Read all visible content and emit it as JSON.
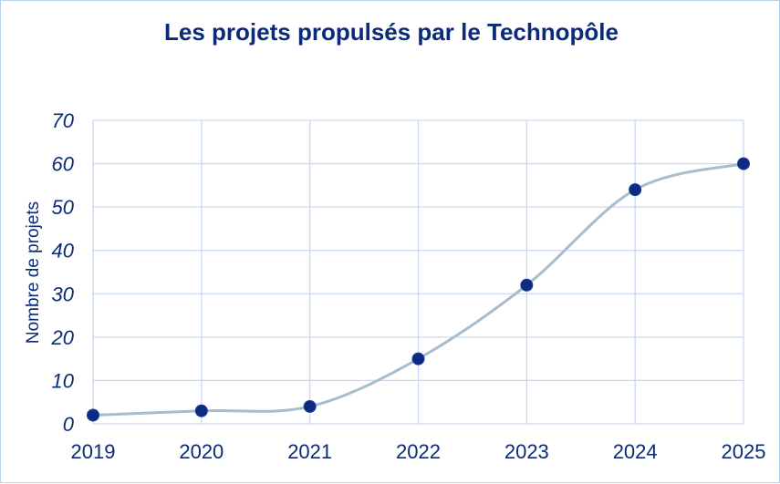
{
  "chart_data": {
    "type": "line",
    "title": "Les projets propulsés par le Technopôle",
    "xlabel": "",
    "ylabel": "Nombre de projets",
    "categories": [
      "2019",
      "2020",
      "2021",
      "2022",
      "2023",
      "2024",
      "2025"
    ],
    "series": [
      {
        "values": [
          2,
          3,
          4,
          15,
          32,
          54,
          60
        ]
      }
    ],
    "ylim": [
      0,
      70
    ],
    "yticks": [
      "0",
      "10",
      "20",
      "30",
      "40",
      "50",
      "60",
      "70"
    ],
    "grid": true,
    "smooth": true,
    "legend": "none",
    "colors": {
      "line": "#a7bccd",
      "marker": "#0d2c80",
      "grid": "#c9daf2",
      "text": "#0b2a78",
      "border": "#b9d2ea"
    }
  }
}
